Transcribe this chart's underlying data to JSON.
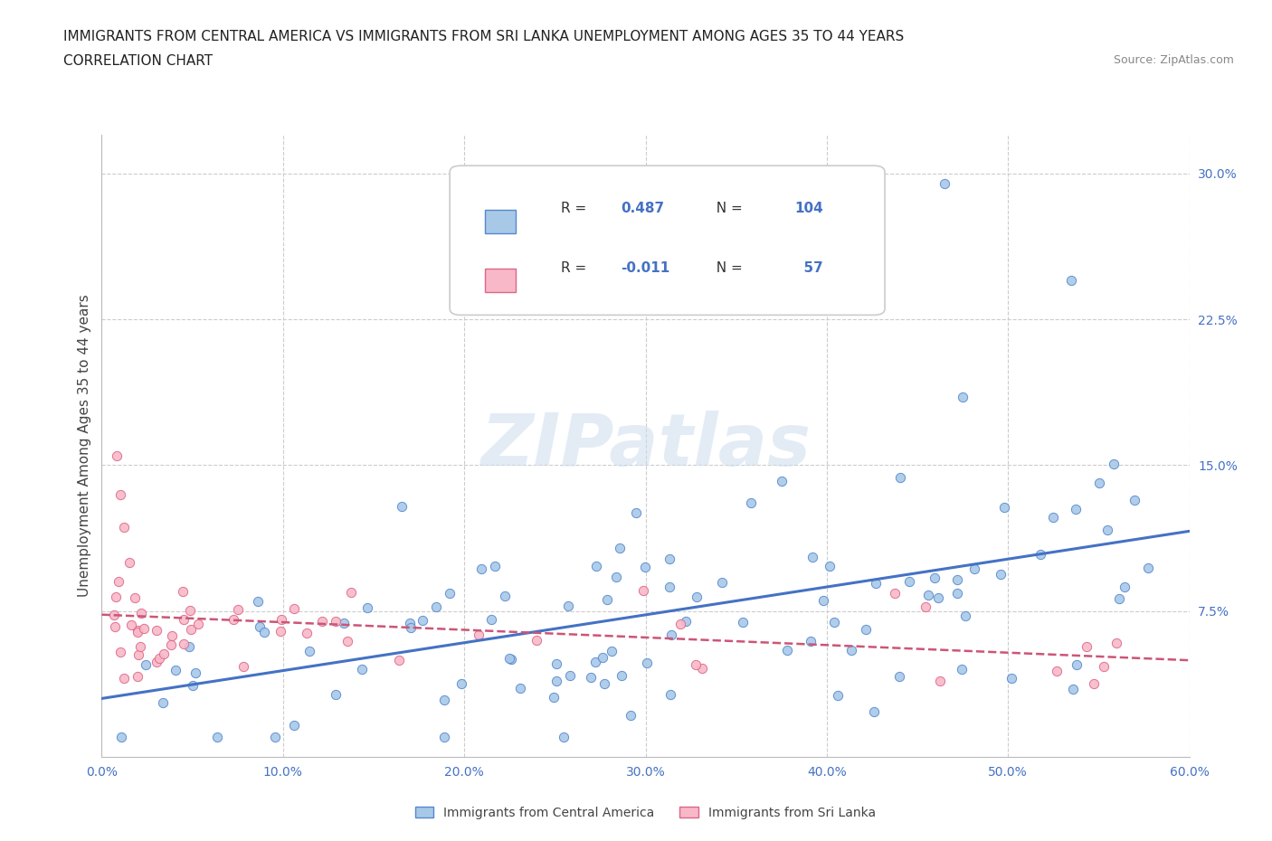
{
  "title_line1": "IMMIGRANTS FROM CENTRAL AMERICA VS IMMIGRANTS FROM SRI LANKA UNEMPLOYMENT AMONG AGES 35 TO 44 YEARS",
  "title_line2": "CORRELATION CHART",
  "source_text": "Source: ZipAtlas.com",
  "ylabel": "Unemployment Among Ages 35 to 44 years",
  "xlim": [
    0.0,
    0.6
  ],
  "ylim": [
    0.0,
    0.32
  ],
  "xtick_values": [
    0.0,
    0.1,
    0.2,
    0.3,
    0.4,
    0.5,
    0.6
  ],
  "ytick_values": [
    0.075,
    0.15,
    0.225,
    0.3
  ],
  "blue_fill": "#a8c8e8",
  "blue_edge": "#5588cc",
  "pink_fill": "#f8b8c8",
  "pink_edge": "#dd6688",
  "blue_line": "#4472c4",
  "pink_line": "#cc5577",
  "R_blue": 0.487,
  "N_blue": 104,
  "R_pink": -0.011,
  "N_pink": 57,
  "legend_label_blue": "Immigrants from Central America",
  "legend_label_pink": "Immigrants from Sri Lanka",
  "watermark": "ZIPatlas",
  "bg": "#ffffff",
  "grid_color": "#cccccc",
  "title_color": "#222222",
  "axis_color": "#4472c4",
  "label_color": "#444444"
}
